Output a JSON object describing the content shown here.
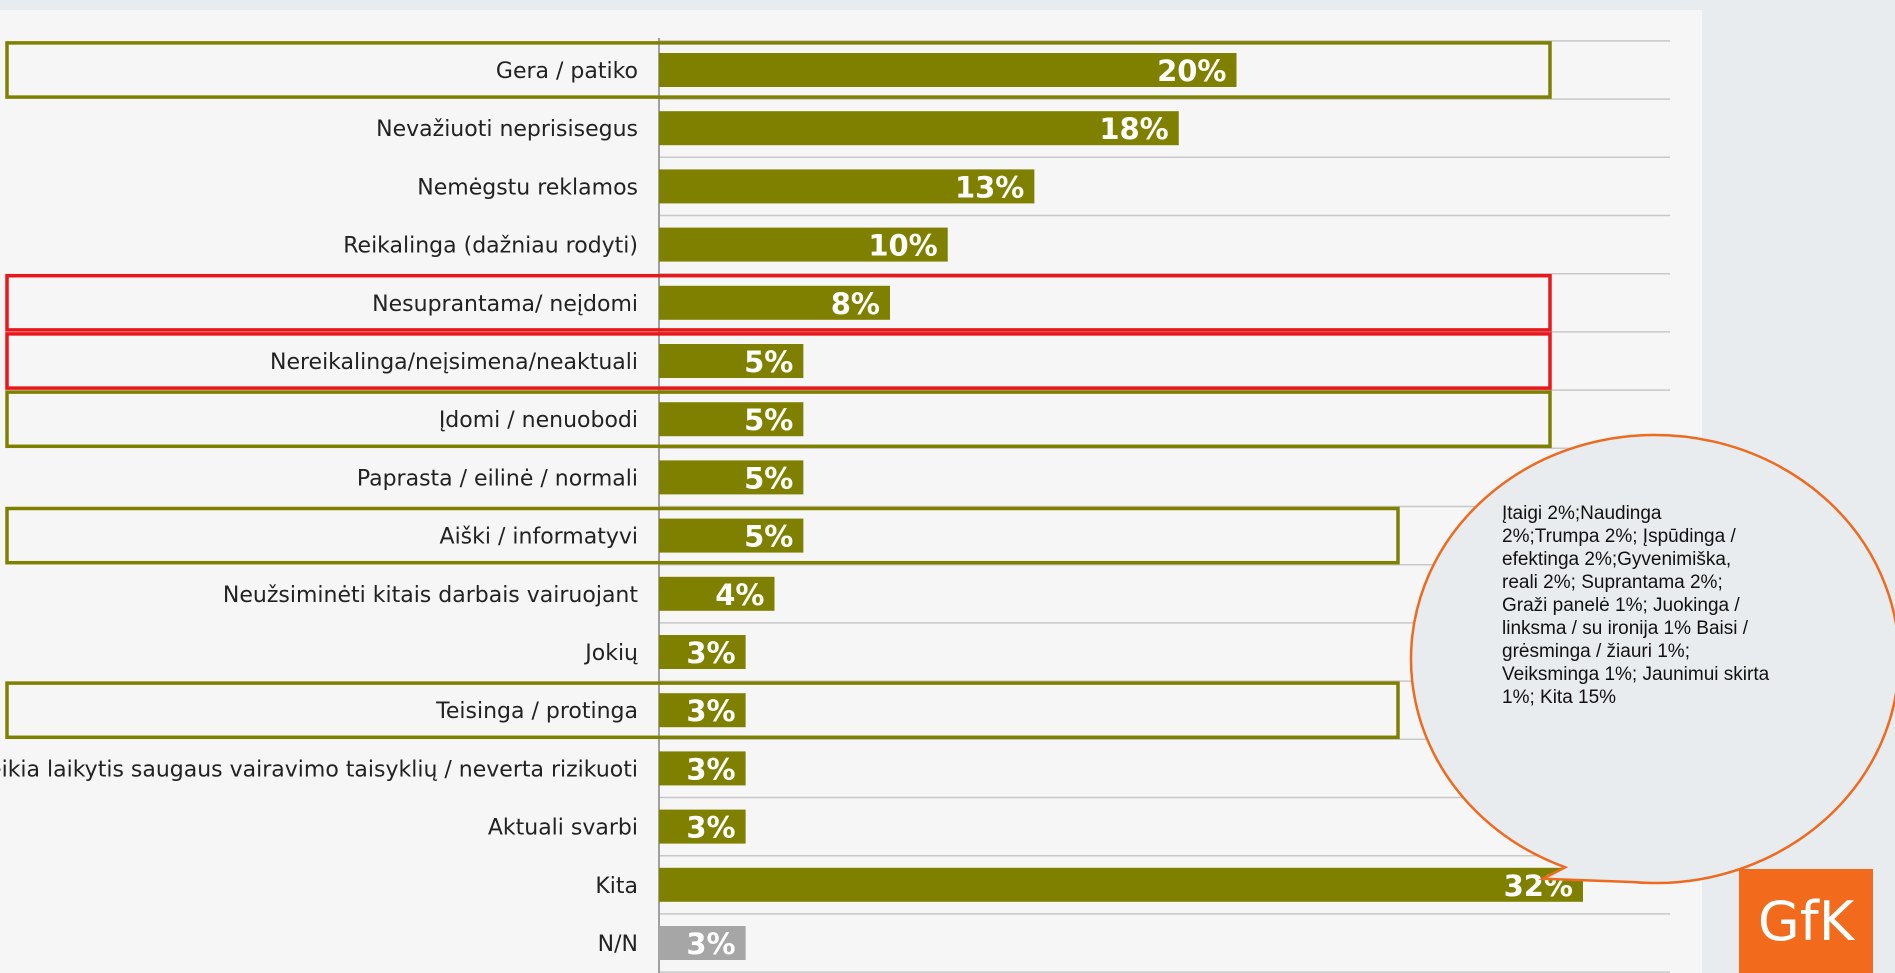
{
  "chart_data": {
    "type": "bar",
    "orientation": "horizontal",
    "categories": [
      "Gera / patiko",
      "Nevažiuoti neprisisegus",
      "Nemėgstu reklamos",
      "Reikalinga (dažniau rodyti)",
      "Nesuprantama/ neįdomi",
      "Nereikalinga/neįsimena/neaktuali",
      "Įdomi / nenuobodi",
      "Paprasta / eilinė / normali",
      "Aiški / informatyvi",
      "Neužsiminėti kitais darbais vairuojant",
      "Jokių",
      "Teisinga / protinga",
      "Reikia laikytis saugaus vairavimo taisyklių / neverta rizikuoti",
      "Aktuali svarbi",
      "Kita",
      "N/N"
    ],
    "values": [
      20,
      18,
      13,
      10,
      8,
      5,
      5,
      5,
      5,
      4,
      3,
      3,
      3,
      3,
      32,
      3
    ],
    "value_labels": [
      "20%",
      "18%",
      "13%",
      "10%",
      "8%",
      "5%",
      "5%",
      "5%",
      "5%",
      "4%",
      "3%",
      "3%",
      "3%",
      "3%",
      "32%",
      "3%"
    ],
    "xlim": [
      0,
      32
    ],
    "grid": "horizontal",
    "colors": {
      "bar": "#808000",
      "bar_na": "#a6a6a6",
      "highlight_positive": "#808000",
      "highlight_negative": "#e8171b",
      "callout_border": "#ee6a1f"
    },
    "highlight_groups": [
      {
        "color": "positive",
        "rows": [
          0
        ]
      },
      {
        "color": "negative",
        "rows": [
          4
        ]
      },
      {
        "color": "negative",
        "rows": [
          5
        ]
      },
      {
        "color": "positive",
        "rows": [
          6
        ]
      },
      {
        "color": "positive",
        "rows": [
          8
        ]
      },
      {
        "color": "positive",
        "rows": [
          11
        ]
      }
    ],
    "callout": {
      "lines": [
        "Įtaigi 2%;Naudinga",
        "2%;Trumpa 2%; Įspūdinga /",
        "efektinga 2%;Gyvenimiška,",
        "reali 2%; Suprantama 2%;",
        "Graži panelė 1%; Juokinga /",
        "linksma / su ironija 1% Baisi /",
        "grėsminga / žiauri 1%;",
        "Veiksminga 1%; Jaunimui skirta",
        "1%;  Kita 15%"
      ],
      "points_to": "Kita"
    }
  },
  "brand": {
    "logo_text": "GfK",
    "color": "#f26b1d"
  }
}
